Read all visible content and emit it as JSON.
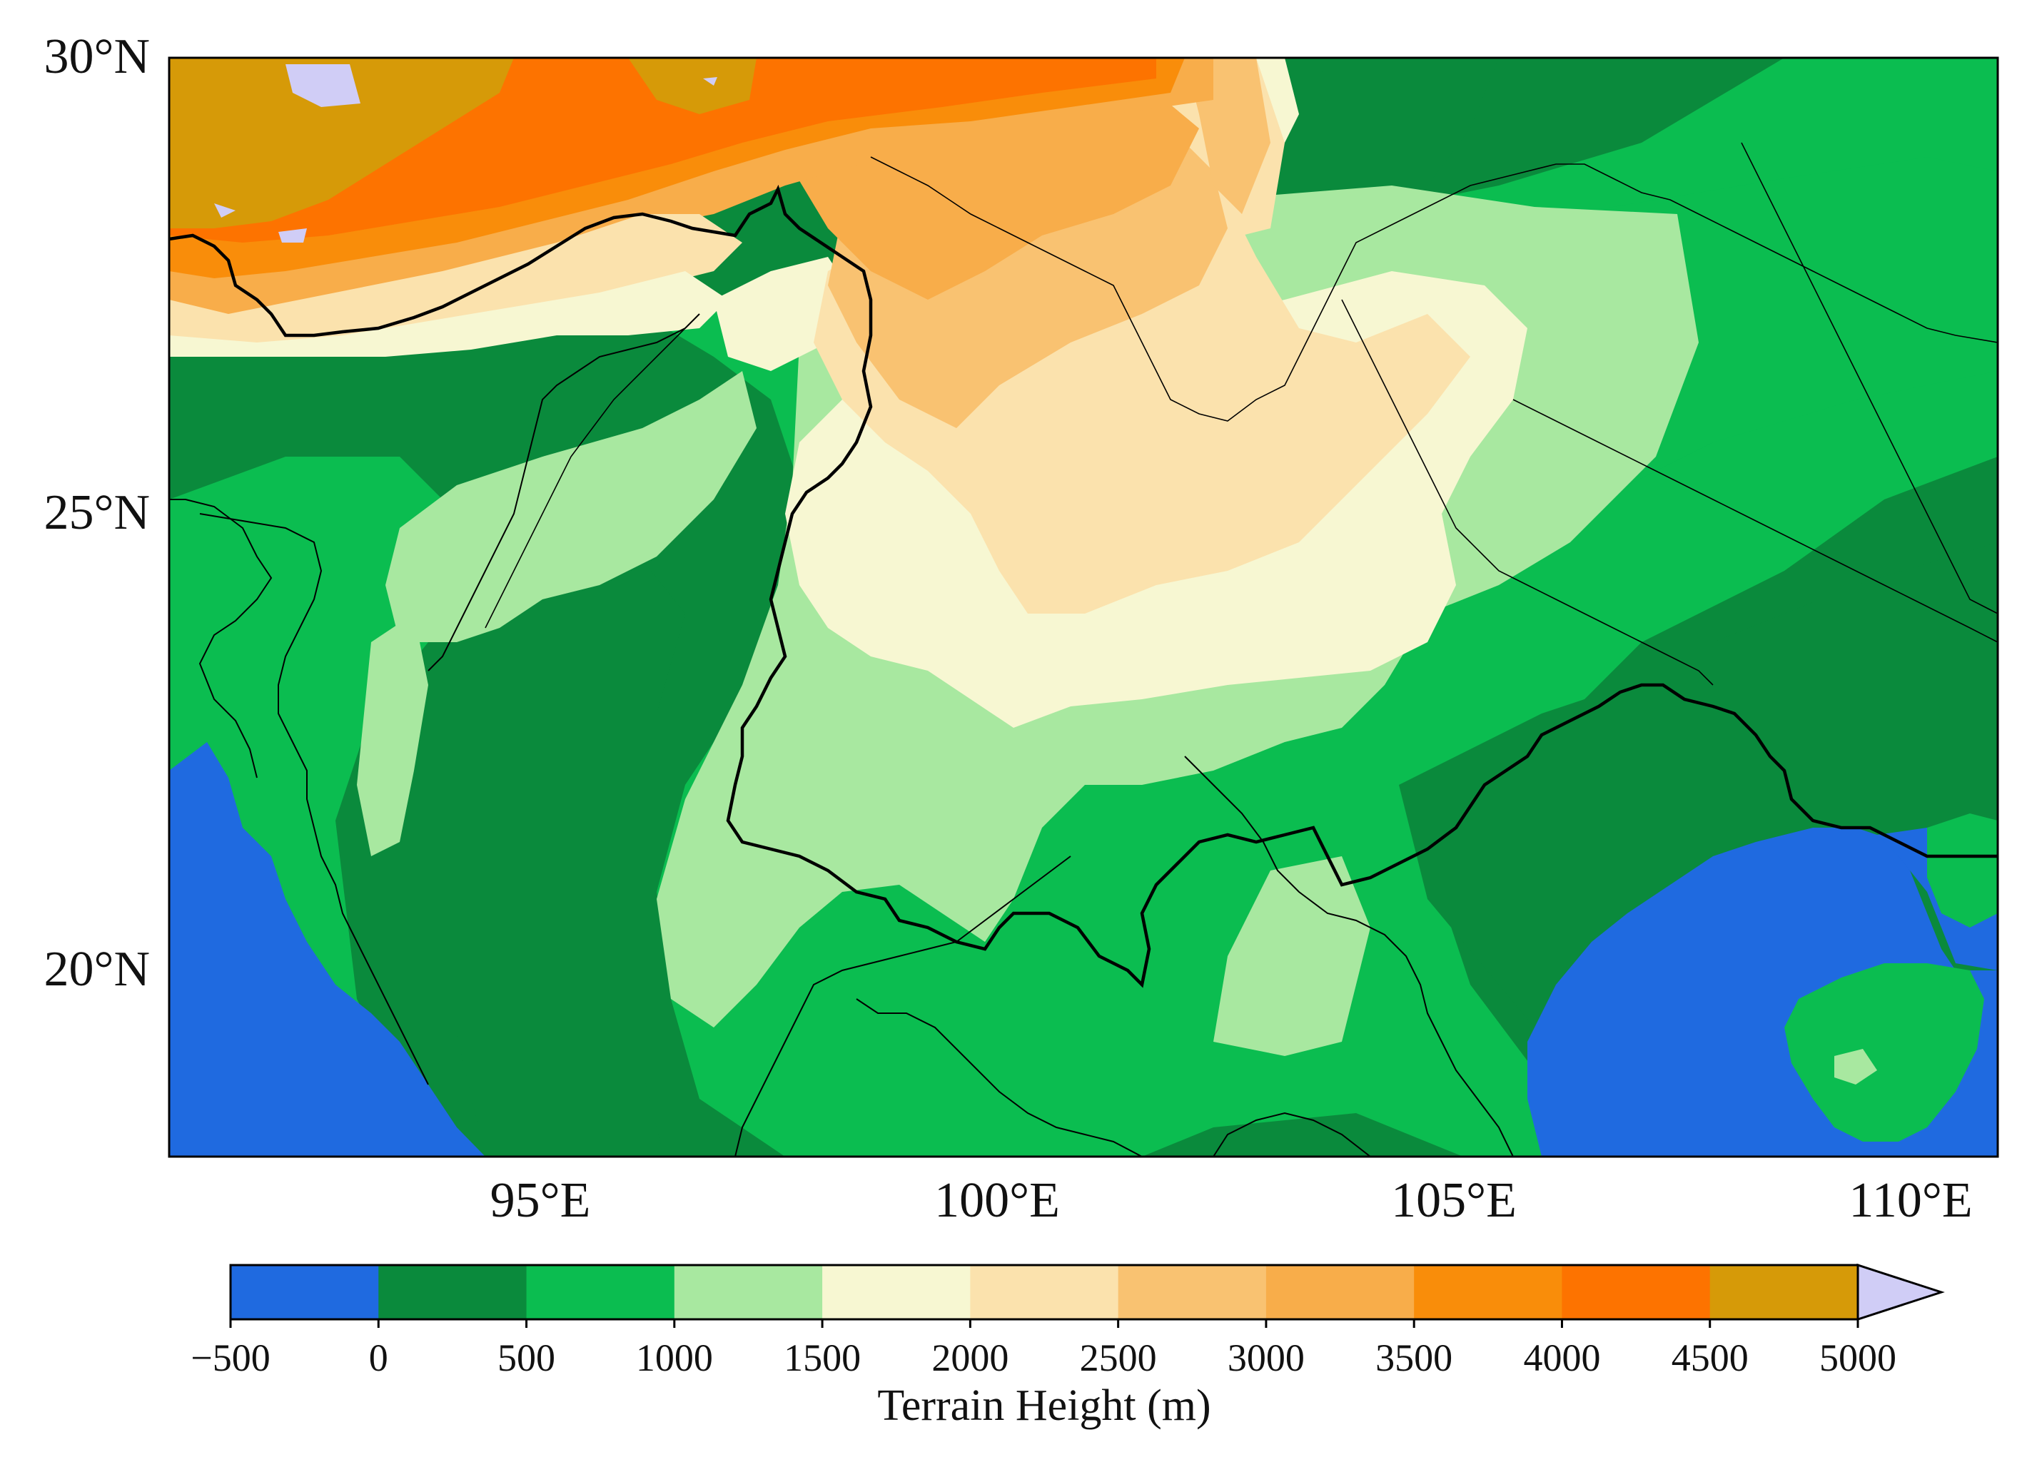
{
  "map": {
    "lat_labels": [
      "30°N",
      "25°N",
      "20°N"
    ],
    "lon_labels": [
      "95°E",
      "100°E",
      "105°E",
      "110°E"
    ],
    "lat_range": [
      18,
      30
    ],
    "lon_range": [
      91,
      111
    ]
  },
  "colorbar": {
    "title": "Terrain Height (m)",
    "tick_labels": [
      "−500",
      "0",
      "500",
      "1000",
      "1500",
      "2000",
      "2500",
      "3000",
      "3500",
      "4000",
      "4500",
      "5000"
    ],
    "colors": [
      "#1f6ae0",
      "#0a8a3c",
      "#0bbd50",
      "#a8e8a0",
      "#f7f7d2",
      "#fbe2ad",
      "#f9c271",
      "#f8ad4a",
      "#f98d0a",
      "#fd7300",
      "#d69a08"
    ],
    "extend_color": "#d0cdf6",
    "extend": "max"
  }
}
